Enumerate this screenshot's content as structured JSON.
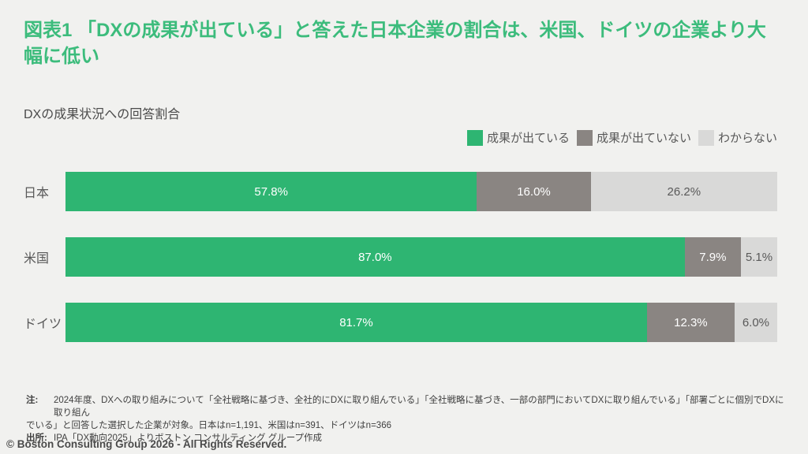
{
  "slide": {
    "title": "図表1 「DXの成果が出ている」と答えた日本企業の割合は、米国、ドイツの企業より大幅に低い",
    "subtitle": "DXの成果状況への回答割合",
    "footer": "© Boston Consulting Group 2026 - All Rights Reserved."
  },
  "notes": {
    "note_label": "注:",
    "note_line1": "2024年度、DXへの取り組みについて「全社戦略に基づき、全社的にDXに取り組んでいる」「全社戦略に基づき、一部の部門においてDXに取り組んでいる」「部署ごとに個別でDXに取り組ん",
    "note_line2": "でいる」と回答した選択した企業が対象。日本はn=1,191、米国はn=391、ドイツはn=366",
    "source_label": "出所:",
    "source_text": "IPA「DX動向2025」よりボストン コンサルティング グループ作成"
  },
  "chart_data": {
    "type": "bar",
    "orientation": "horizontal-stacked",
    "title": "DXの成果状況への回答割合",
    "categories": [
      "日本",
      "米国",
      "ドイツ"
    ],
    "series": [
      {
        "name": "成果が出ている",
        "color": "#2EB572",
        "label_color": "#FFFFFF",
        "values": [
          57.8,
          87.0,
          81.7
        ]
      },
      {
        "name": "成果が出ていない",
        "color": "#8A8582",
        "label_color": "#FFFFFF",
        "values": [
          16.0,
          7.9,
          12.3
        ]
      },
      {
        "name": "わからない",
        "color": "#D9D9D8",
        "label_color": "#595959",
        "values": [
          26.2,
          5.1,
          6.0
        ]
      }
    ],
    "value_suffix": "%",
    "xlim": [
      0,
      100
    ],
    "grid": false,
    "legend_position": "top-right"
  },
  "colors": {
    "background": "#F1F1EF",
    "title_green": "#3CBC7C",
    "bar_green": "#2EB572",
    "bar_dark_gray": "#8A8582",
    "bar_light_gray": "#D9D9D8",
    "text_gray": "#595959"
  }
}
